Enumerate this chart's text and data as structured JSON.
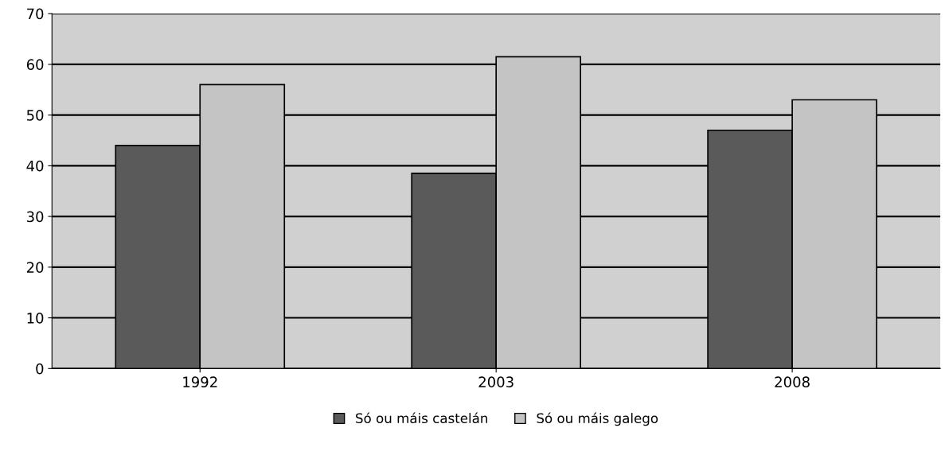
{
  "chart_data": {
    "type": "bar",
    "categories": [
      "1992",
      "2003",
      "2008"
    ],
    "series": [
      {
        "name": "Só ou máis castelán",
        "color": "#5a5a5a",
        "values": [
          44,
          38.5,
          47
        ]
      },
      {
        "name": "Só ou máis galego",
        "color": "#c4c4c4",
        "values": [
          56,
          61.5,
          53
        ]
      }
    ],
    "ylim": [
      0,
      70
    ],
    "yticks": [
      0,
      10,
      20,
      30,
      40,
      50,
      60,
      70
    ],
    "grid": "y",
    "legend": "bottom"
  }
}
